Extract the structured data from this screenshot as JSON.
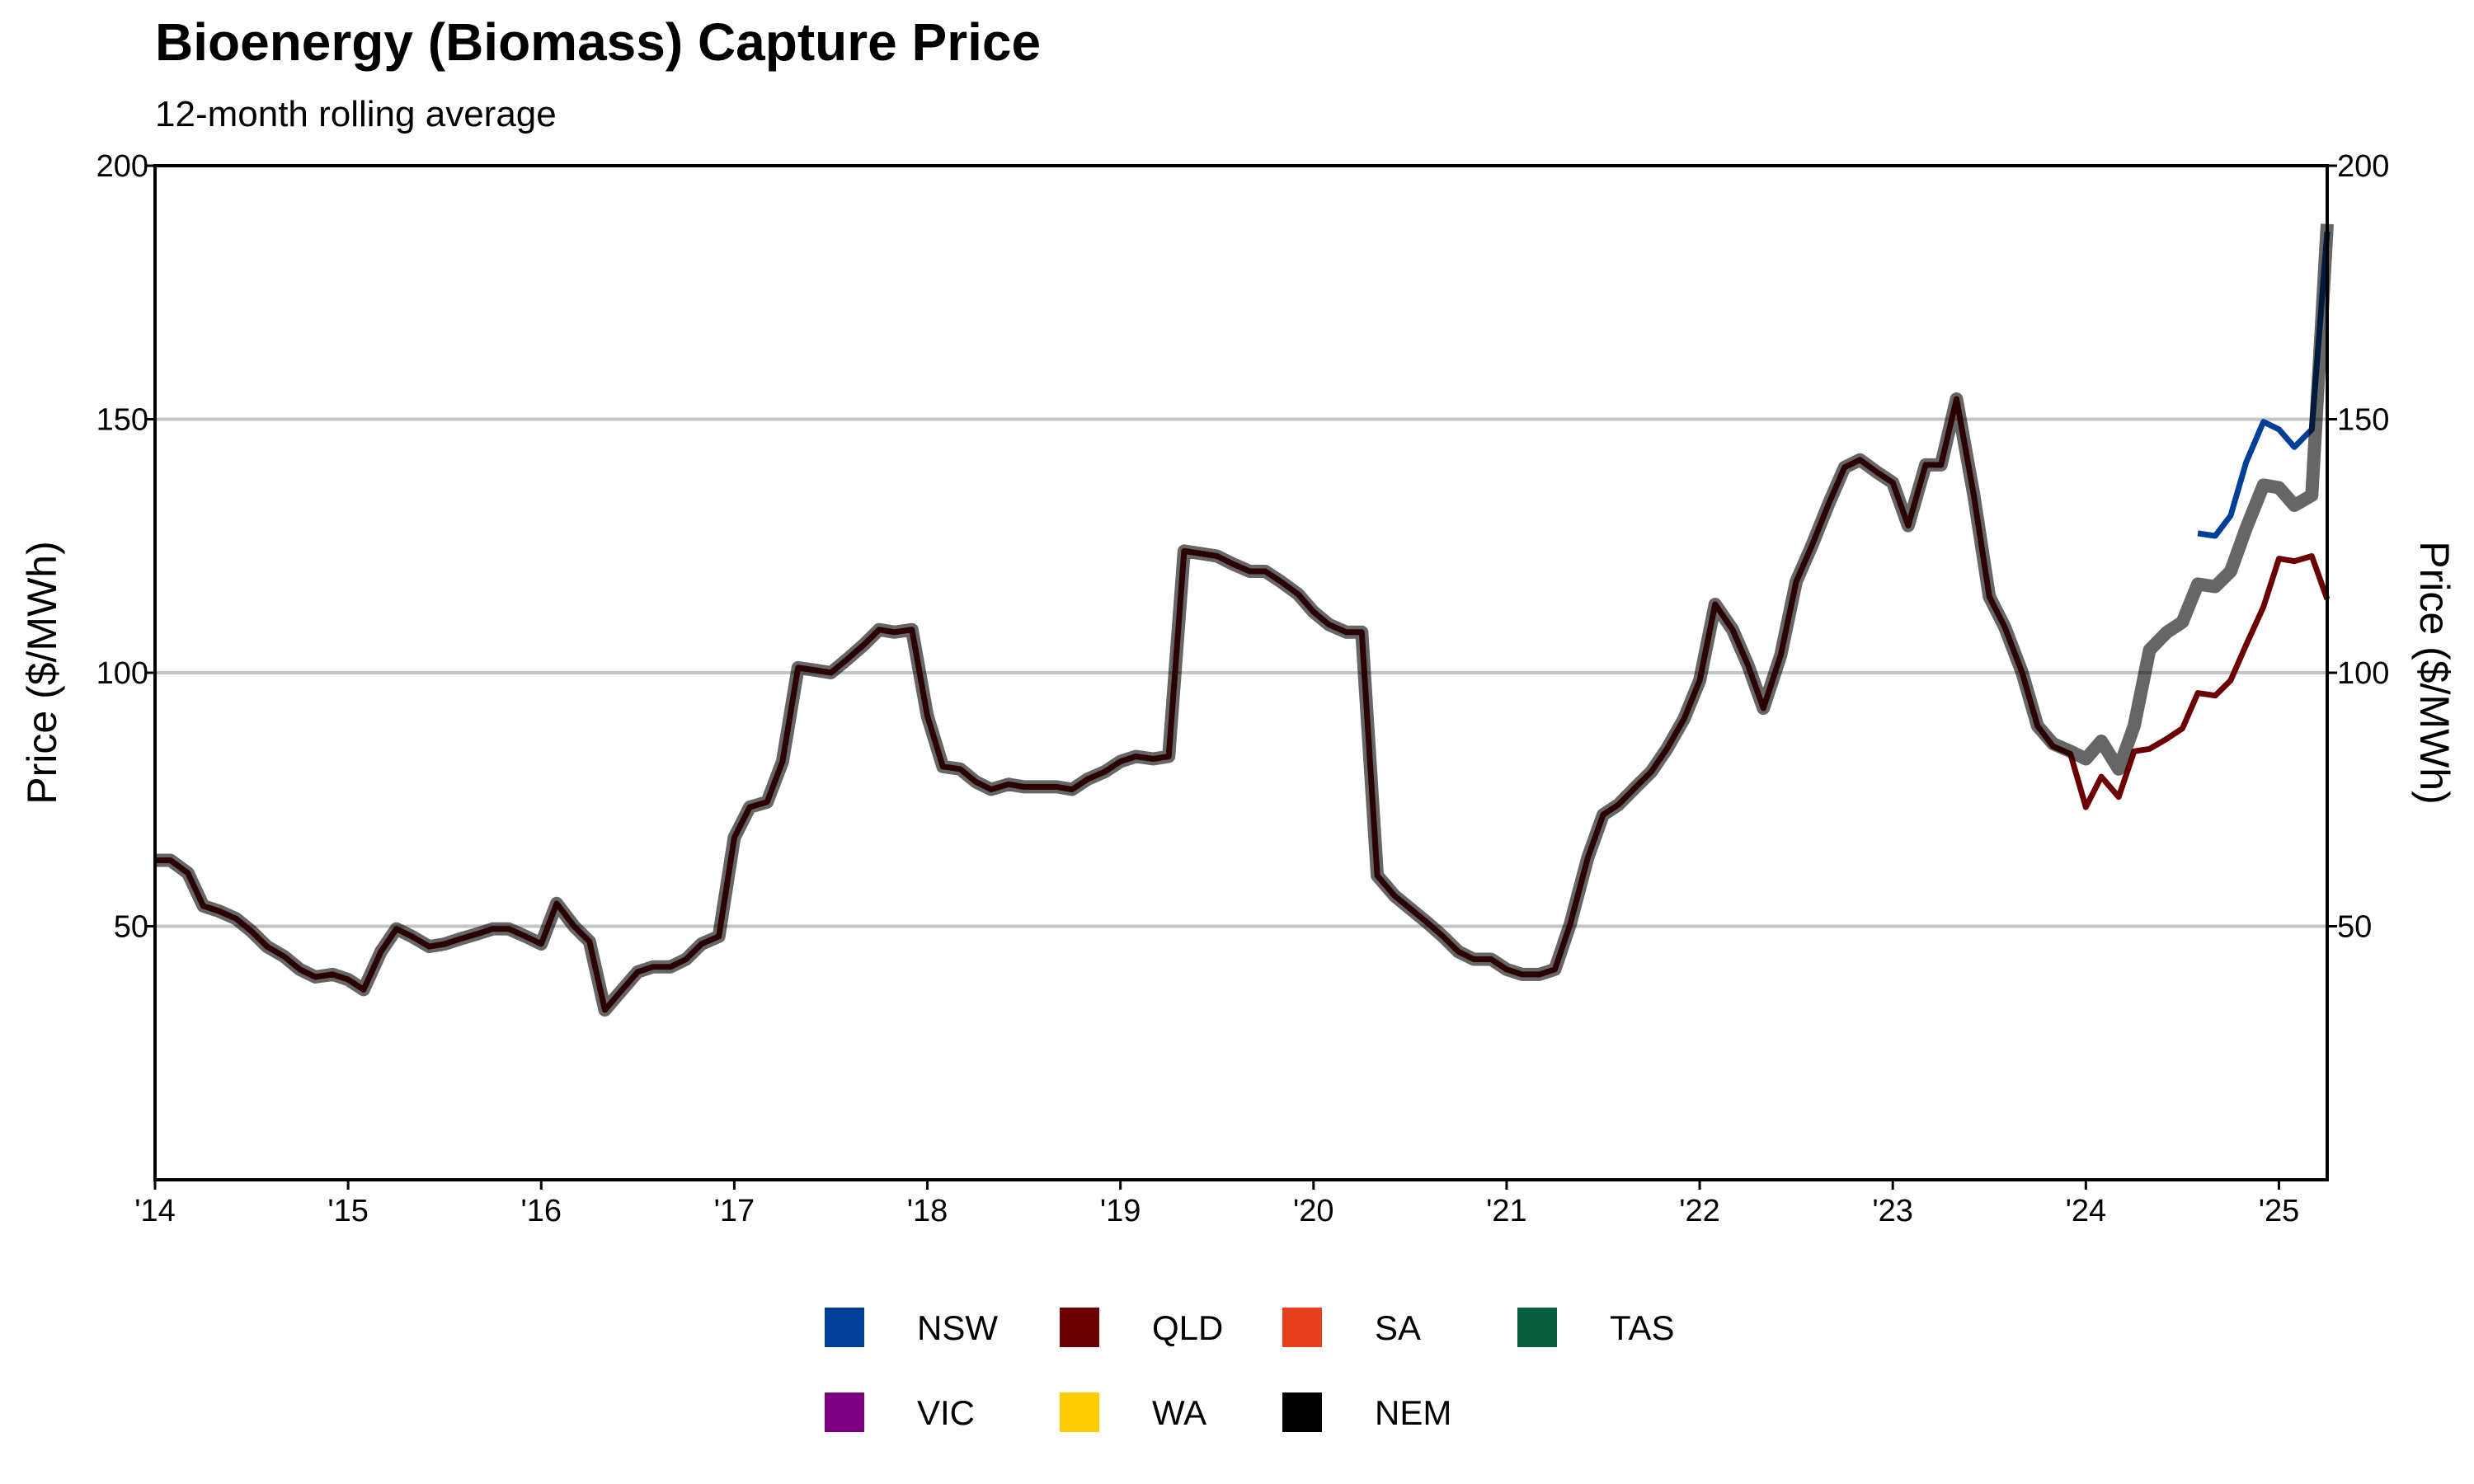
{
  "chart_data": {
    "type": "line",
    "title": "Bioenergy (Biomass) Capture Price",
    "subtitle": "12-month rolling average",
    "ylabel": "Price ($/MWh)",
    "ylabel_right": "Price ($/MWh)",
    "xlabel": "",
    "ylim": [
      0,
      200
    ],
    "yticks": [
      50,
      100,
      150,
      200
    ],
    "xlim": [
      2014.0,
      2025.25
    ],
    "xticks": [
      {
        "value": 2014,
        "label": "'14"
      },
      {
        "value": 2015,
        "label": "'15"
      },
      {
        "value": 2016,
        "label": "'16"
      },
      {
        "value": 2017,
        "label": "'17"
      },
      {
        "value": 2018,
        "label": "'18"
      },
      {
        "value": 2019,
        "label": "'19"
      },
      {
        "value": 2020,
        "label": "'20"
      },
      {
        "value": 2021,
        "label": "'21"
      },
      {
        "value": 2022,
        "label": "'22"
      },
      {
        "value": 2023,
        "label": "'23"
      },
      {
        "value": 2024,
        "label": "'24"
      },
      {
        "value": 2025,
        "label": "'25"
      }
    ],
    "grid": "horizontal",
    "legend_position": "bottom",
    "legend": [
      {
        "name": "NSW",
        "color": "#003f98"
      },
      {
        "name": "QLD",
        "color": "#6b0000"
      },
      {
        "name": "SA",
        "color": "#e8401c"
      },
      {
        "name": "TAS",
        "color": "#0a5e40"
      },
      {
        "name": "VIC",
        "color": "#7a0080"
      },
      {
        "name": "WA",
        "color": "#ffcc00"
      },
      {
        "name": "NEM",
        "color": "#000000"
      }
    ],
    "series": [
      {
        "name": "QLD",
        "color": "#6b0000",
        "points": [
          [
            2014.0,
            63.0
          ],
          [
            2014.08,
            63.0
          ],
          [
            2014.17,
            60.5
          ],
          [
            2014.25,
            54.0
          ],
          [
            2014.33,
            53.0
          ],
          [
            2014.42,
            51.5
          ],
          [
            2014.5,
            49.0
          ],
          [
            2014.58,
            46.0
          ],
          [
            2014.67,
            44.0
          ],
          [
            2014.75,
            41.5
          ],
          [
            2014.83,
            40.0
          ],
          [
            2014.92,
            40.5
          ],
          [
            2015.0,
            39.5
          ],
          [
            2015.08,
            37.5
          ],
          [
            2015.17,
            45.0
          ],
          [
            2015.25,
            49.5
          ],
          [
            2015.33,
            48.0
          ],
          [
            2015.42,
            46.0
          ],
          [
            2015.5,
            46.5
          ],
          [
            2015.58,
            47.5
          ],
          [
            2015.67,
            48.5
          ],
          [
            2015.75,
            49.5
          ],
          [
            2015.83,
            49.5
          ],
          [
            2015.92,
            48.0
          ],
          [
            2016.0,
            46.5
          ],
          [
            2016.08,
            54.5
          ],
          [
            2016.17,
            50.0
          ],
          [
            2016.25,
            47.0
          ],
          [
            2016.33,
            33.5
          ],
          [
            2016.42,
            37.5
          ],
          [
            2016.5,
            41.0
          ],
          [
            2016.58,
            42.0
          ],
          [
            2016.67,
            42.0
          ],
          [
            2016.75,
            43.5
          ],
          [
            2016.83,
            46.5
          ],
          [
            2016.92,
            48.0
          ],
          [
            2017.0,
            67.5
          ],
          [
            2017.08,
            73.5
          ],
          [
            2017.17,
            74.5
          ],
          [
            2017.25,
            82.5
          ],
          [
            2017.33,
            101.0
          ],
          [
            2017.42,
            100.5
          ],
          [
            2017.5,
            100.0
          ],
          [
            2017.58,
            102.5
          ],
          [
            2017.67,
            105.5
          ],
          [
            2017.75,
            108.5
          ],
          [
            2017.83,
            108.0
          ],
          [
            2017.92,
            108.5
          ],
          [
            2018.0,
            91.5
          ],
          [
            2018.08,
            81.5
          ],
          [
            2018.17,
            81.0
          ],
          [
            2018.25,
            78.5
          ],
          [
            2018.33,
            77.0
          ],
          [
            2018.42,
            78.0
          ],
          [
            2018.5,
            77.5
          ],
          [
            2018.58,
            77.5
          ],
          [
            2018.67,
            77.5
          ],
          [
            2018.75,
            77.0
          ],
          [
            2018.83,
            79.0
          ],
          [
            2018.92,
            80.5
          ],
          [
            2019.0,
            82.5
          ],
          [
            2019.08,
            83.5
          ],
          [
            2019.17,
            83.0
          ],
          [
            2019.25,
            83.5
          ],
          [
            2019.33,
            124.0
          ],
          [
            2019.42,
            123.5
          ],
          [
            2019.5,
            123.0
          ],
          [
            2019.58,
            121.5
          ],
          [
            2019.67,
            120.0
          ],
          [
            2019.75,
            120.0
          ],
          [
            2019.83,
            118.0
          ],
          [
            2019.92,
            115.5
          ],
          [
            2020.0,
            112.0
          ],
          [
            2020.08,
            109.5
          ],
          [
            2020.17,
            108.0
          ],
          [
            2020.25,
            108.0
          ],
          [
            2020.33,
            60.0
          ],
          [
            2020.42,
            56.0
          ],
          [
            2020.5,
            53.5
          ],
          [
            2020.58,
            51.0
          ],
          [
            2020.67,
            48.0
          ],
          [
            2020.75,
            45.0
          ],
          [
            2020.83,
            43.5
          ],
          [
            2020.92,
            43.5
          ],
          [
            2021.0,
            41.5
          ],
          [
            2021.08,
            40.5
          ],
          [
            2021.17,
            40.5
          ],
          [
            2021.25,
            41.5
          ],
          [
            2021.33,
            50.5
          ],
          [
            2021.42,
            63.5
          ],
          [
            2021.5,
            72.0
          ],
          [
            2021.58,
            74.0
          ],
          [
            2021.67,
            77.5
          ],
          [
            2021.75,
            80.5
          ],
          [
            2021.83,
            85.0
          ],
          [
            2021.92,
            91.0
          ],
          [
            2022.0,
            98.5
          ],
          [
            2022.08,
            113.5
          ],
          [
            2022.17,
            108.5
          ],
          [
            2022.25,
            101.5
          ],
          [
            2022.33,
            93.0
          ],
          [
            2022.42,
            103.5
          ],
          [
            2022.5,
            118.0
          ],
          [
            2022.58,
            125.0
          ],
          [
            2022.67,
            133.5
          ],
          [
            2022.75,
            140.5
          ],
          [
            2022.83,
            142.0
          ],
          [
            2022.92,
            139.5
          ],
          [
            2023.0,
            137.5
          ],
          [
            2023.08,
            129.0
          ],
          [
            2023.17,
            141.0
          ],
          [
            2023.25,
            141.0
          ],
          [
            2023.33,
            154.0
          ],
          [
            2023.42,
            135.0
          ],
          [
            2023.5,
            115.0
          ],
          [
            2023.58,
            109.0
          ],
          [
            2023.67,
            100.0
          ],
          [
            2023.75,
            89.5
          ],
          [
            2023.83,
            85.5
          ],
          [
            2023.92,
            84.0
          ],
          [
            2024.0,
            73.5
          ],
          [
            2024.08,
            79.5
          ],
          [
            2024.17,
            75.5
          ],
          [
            2024.25,
            84.5
          ],
          [
            2024.33,
            85.0
          ],
          [
            2024.42,
            87.0
          ],
          [
            2024.5,
            89.0
          ],
          [
            2024.58,
            96.0
          ],
          [
            2024.67,
            95.5
          ],
          [
            2024.75,
            98.5
          ],
          [
            2024.83,
            105.5
          ],
          [
            2024.92,
            113.0
          ],
          [
            2025.0,
            122.5
          ],
          [
            2025.08,
            122.0
          ],
          [
            2025.17,
            123.0
          ],
          [
            2025.25,
            114.5
          ]
        ]
      },
      {
        "name": "NSW",
        "color": "#003f98",
        "points": [
          [
            2024.58,
            127.5
          ],
          [
            2024.67,
            127.0
          ],
          [
            2024.75,
            131.0
          ],
          [
            2024.83,
            141.5
          ],
          [
            2024.92,
            149.5
          ],
          [
            2025.0,
            148.0
          ],
          [
            2025.08,
            144.5
          ],
          [
            2025.17,
            148.0
          ],
          [
            2025.25,
            187.0
          ]
        ]
      },
      {
        "name": "NEM",
        "color": "#000000",
        "points": [
          [
            2014.0,
            63.0
          ],
          [
            2014.08,
            63.0
          ],
          [
            2014.17,
            60.5
          ],
          [
            2014.25,
            54.0
          ],
          [
            2014.33,
            53.0
          ],
          [
            2014.42,
            51.5
          ],
          [
            2014.5,
            49.0
          ],
          [
            2014.58,
            46.0
          ],
          [
            2014.67,
            44.0
          ],
          [
            2014.75,
            41.5
          ],
          [
            2014.83,
            40.0
          ],
          [
            2014.92,
            40.5
          ],
          [
            2015.0,
            39.5
          ],
          [
            2015.08,
            37.5
          ],
          [
            2015.17,
            45.0
          ],
          [
            2015.25,
            49.5
          ],
          [
            2015.33,
            48.0
          ],
          [
            2015.42,
            46.0
          ],
          [
            2015.5,
            46.5
          ],
          [
            2015.58,
            47.5
          ],
          [
            2015.67,
            48.5
          ],
          [
            2015.75,
            49.5
          ],
          [
            2015.83,
            49.5
          ],
          [
            2015.92,
            48.0
          ],
          [
            2016.0,
            46.5
          ],
          [
            2016.08,
            54.5
          ],
          [
            2016.17,
            50.0
          ],
          [
            2016.25,
            47.0
          ],
          [
            2016.33,
            33.5
          ],
          [
            2016.42,
            37.5
          ],
          [
            2016.5,
            41.0
          ],
          [
            2016.58,
            42.0
          ],
          [
            2016.67,
            42.0
          ],
          [
            2016.75,
            43.5
          ],
          [
            2016.83,
            46.5
          ],
          [
            2016.92,
            48.0
          ],
          [
            2017.0,
            67.5
          ],
          [
            2017.08,
            73.5
          ],
          [
            2017.17,
            74.5
          ],
          [
            2017.25,
            82.5
          ],
          [
            2017.33,
            101.0
          ],
          [
            2017.42,
            100.5
          ],
          [
            2017.5,
            100.0
          ],
          [
            2017.58,
            102.5
          ],
          [
            2017.67,
            105.5
          ],
          [
            2017.75,
            108.5
          ],
          [
            2017.83,
            108.0
          ],
          [
            2017.92,
            108.5
          ],
          [
            2018.0,
            91.5
          ],
          [
            2018.08,
            81.5
          ],
          [
            2018.17,
            81.0
          ],
          [
            2018.25,
            78.5
          ],
          [
            2018.33,
            77.0
          ],
          [
            2018.42,
            78.0
          ],
          [
            2018.5,
            77.5
          ],
          [
            2018.58,
            77.5
          ],
          [
            2018.67,
            77.5
          ],
          [
            2018.75,
            77.0
          ],
          [
            2018.83,
            79.0
          ],
          [
            2018.92,
            80.5
          ],
          [
            2019.0,
            82.5
          ],
          [
            2019.08,
            83.5
          ],
          [
            2019.17,
            83.0
          ],
          [
            2019.25,
            83.5
          ],
          [
            2019.33,
            124.0
          ],
          [
            2019.42,
            123.5
          ],
          [
            2019.5,
            123.0
          ],
          [
            2019.58,
            121.5
          ],
          [
            2019.67,
            120.0
          ],
          [
            2019.75,
            120.0
          ],
          [
            2019.83,
            118.0
          ],
          [
            2019.92,
            115.5
          ],
          [
            2020.0,
            112.0
          ],
          [
            2020.08,
            109.5
          ],
          [
            2020.17,
            108.0
          ],
          [
            2020.25,
            108.0
          ],
          [
            2020.33,
            60.0
          ],
          [
            2020.42,
            56.0
          ],
          [
            2020.5,
            53.5
          ],
          [
            2020.58,
            51.0
          ],
          [
            2020.67,
            48.0
          ],
          [
            2020.75,
            45.0
          ],
          [
            2020.83,
            43.5
          ],
          [
            2020.92,
            43.5
          ],
          [
            2021.0,
            41.5
          ],
          [
            2021.08,
            40.5
          ],
          [
            2021.17,
            40.5
          ],
          [
            2021.25,
            41.5
          ],
          [
            2021.33,
            50.5
          ],
          [
            2021.42,
            63.5
          ],
          [
            2021.5,
            72.0
          ],
          [
            2021.58,
            74.0
          ],
          [
            2021.67,
            77.5
          ],
          [
            2021.75,
            80.5
          ],
          [
            2021.83,
            85.0
          ],
          [
            2021.92,
            91.0
          ],
          [
            2022.0,
            98.5
          ],
          [
            2022.08,
            113.5
          ],
          [
            2022.17,
            108.5
          ],
          [
            2022.25,
            101.5
          ],
          [
            2022.33,
            93.0
          ],
          [
            2022.42,
            103.5
          ],
          [
            2022.5,
            118.0
          ],
          [
            2022.58,
            125.0
          ],
          [
            2022.67,
            133.5
          ],
          [
            2022.75,
            140.5
          ],
          [
            2022.83,
            142.0
          ],
          [
            2022.92,
            139.5
          ],
          [
            2023.0,
            137.5
          ],
          [
            2023.08,
            129.0
          ],
          [
            2023.17,
            141.0
          ],
          [
            2023.25,
            141.0
          ],
          [
            2023.33,
            154.0
          ],
          [
            2023.42,
            135.0
          ],
          [
            2023.5,
            115.0
          ],
          [
            2023.58,
            109.0
          ],
          [
            2023.67,
            100.0
          ],
          [
            2023.75,
            89.5
          ],
          [
            2023.83,
            86.0
          ],
          [
            2023.92,
            84.5
          ],
          [
            2024.0,
            83.0
          ],
          [
            2024.08,
            86.5
          ],
          [
            2024.17,
            81.0
          ],
          [
            2024.25,
            89.5
          ],
          [
            2024.33,
            104.5
          ],
          [
            2024.42,
            108.0
          ],
          [
            2024.5,
            110.0
          ],
          [
            2024.58,
            117.5
          ],
          [
            2024.67,
            117.0
          ],
          [
            2024.75,
            120.0
          ],
          [
            2024.83,
            128.5
          ],
          [
            2024.92,
            137.0
          ],
          [
            2025.0,
            136.5
          ],
          [
            2025.08,
            133.0
          ],
          [
            2025.17,
            135.0
          ],
          [
            2025.25,
            188.5
          ]
        ]
      }
    ]
  }
}
